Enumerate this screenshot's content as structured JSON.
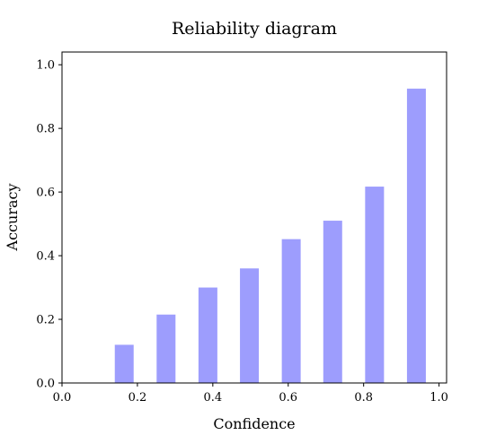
{
  "chart_data": {
    "type": "bar",
    "title": "Reliability diagram",
    "xlabel": "Confidence",
    "ylabel": "Accuracy",
    "x": [
      0.05,
      0.15,
      0.25,
      0.35,
      0.45,
      0.55,
      0.65,
      0.75,
      0.85,
      0.95
    ],
    "values": [
      0.0,
      0.12,
      0.215,
      0.3,
      0.36,
      0.452,
      0.51,
      0.617,
      0.925,
      null
    ],
    "bar_centers": [
      0.165,
      0.276,
      0.387,
      0.497,
      0.608,
      0.718,
      0.829,
      0.94
    ],
    "bar_values": [
      0.12,
      0.215,
      0.3,
      0.36,
      0.452,
      0.51,
      0.617,
      0.925
    ],
    "xlim": [
      0.0,
      1.02
    ],
    "ylim": [
      0.0,
      1.04
    ],
    "xticks": [
      "0.0",
      "0.2",
      "0.4",
      "0.6",
      "0.8",
      "1.0"
    ],
    "yticks": [
      "0.0",
      "0.2",
      "0.4",
      "0.6",
      "0.8",
      "1.0"
    ],
    "bar_color": "#9d9dfd",
    "grid": false
  }
}
